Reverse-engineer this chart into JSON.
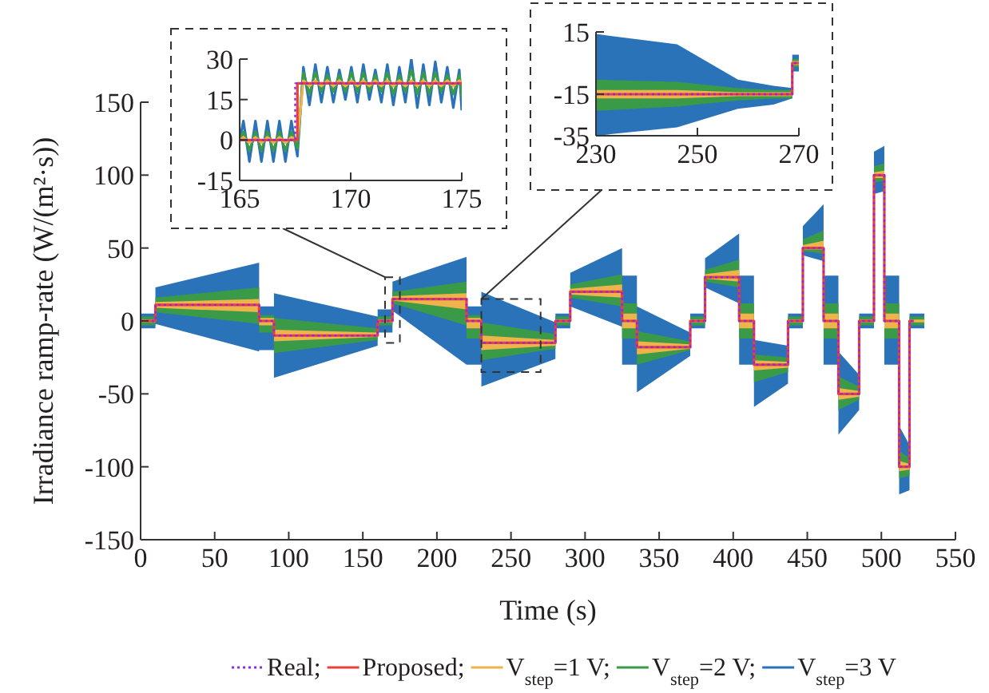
{
  "chart_data": [
    {
      "type": "line",
      "xlabel": "Time (s)",
      "ylabel": "Irradiance ramp-rate (W/(m²·s))",
      "xlim": [
        0,
        550
      ],
      "ylim": [
        -150,
        150
      ],
      "xticks": [
        0,
        50,
        100,
        150,
        200,
        250,
        300,
        350,
        400,
        450,
        500,
        550
      ],
      "yticks": [
        -150,
        -100,
        -50,
        0,
        50,
        100,
        150
      ],
      "legend": "bottom",
      "x": [
        0,
        10,
        10,
        80,
        80,
        90,
        90,
        160,
        160,
        170,
        170,
        220,
        220,
        230,
        230,
        280,
        280,
        290,
        290,
        325,
        325,
        335,
        335,
        371,
        371,
        381,
        381,
        404,
        404,
        414,
        414,
        437,
        437,
        447,
        447,
        461,
        461,
        471,
        471,
        485,
        485,
        495,
        495,
        502,
        502,
        512,
        512,
        519,
        519,
        529
      ],
      "series": [
        {
          "name": "V$_{step}$=3 V",
          "color": "#2a73b8",
          "values": [
            null,
            null,
            null,
            null,
            null,
            null,
            null,
            null,
            null,
            null,
            null,
            null,
            null,
            null,
            null,
            null,
            null,
            null,
            null,
            null,
            null,
            null,
            null,
            null,
            null,
            null,
            null,
            null,
            null,
            null,
            null,
            null,
            null,
            null,
            null,
            null,
            null,
            null,
            null,
            null,
            null,
            null,
            null,
            null,
            null,
            null,
            null,
            null,
            null,
            null
          ],
          "lower": [
            -5,
            -5,
            -2,
            -21,
            -20,
            -20,
            -39,
            -17,
            -8,
            -8,
            7,
            -30,
            -30,
            -30,
            -45,
            -26,
            -5,
            -5,
            10,
            -4,
            -30,
            -30,
            -49,
            -24,
            -5,
            -5,
            23,
            12,
            -30,
            -30,
            -59,
            -43,
            -5,
            -5,
            45,
            41,
            -30,
            -30,
            -78,
            -61,
            -5,
            -5,
            87,
            89,
            -30,
            -30,
            -119,
            -116,
            -5,
            -5
          ],
          "upper": [
            5,
            5,
            23,
            40,
            10,
            10,
            19,
            3,
            8,
            8,
            27,
            44,
            10,
            10,
            20,
            -1,
            5,
            5,
            33,
            50,
            31,
            31,
            10,
            -8,
            5,
            5,
            43,
            60,
            31,
            31,
            -13,
            -17,
            5,
            5,
            65,
            80,
            31,
            31,
            -21,
            -37,
            5,
            5,
            116,
            120,
            31,
            31,
            -72,
            -85,
            5,
            5
          ]
        },
        {
          "name": "V$_{step}$=2 V;",
          "color": "#3a9a47",
          "values": [
            null,
            null,
            null,
            null,
            null,
            null,
            null,
            null,
            null,
            null,
            null,
            null,
            null,
            null,
            null,
            null,
            null,
            null,
            null,
            null,
            null,
            null,
            null,
            null,
            null,
            null,
            null,
            null,
            null,
            null,
            null,
            null,
            null,
            null,
            null,
            null,
            null,
            null,
            null,
            null,
            null,
            null,
            null,
            null,
            null,
            null,
            null,
            null,
            null,
            null
          ],
          "lower": [
            -3,
            -3,
            6,
            -2,
            -8,
            -8,
            -22,
            -13,
            -3,
            -3,
            12,
            -3,
            -12,
            -12,
            -27,
            -19,
            -3,
            -3,
            16,
            10,
            -12,
            -12,
            -30,
            -20,
            -3,
            -3,
            27,
            23,
            -12,
            -12,
            -42,
            -35,
            -3,
            -3,
            48,
            46,
            -12,
            -12,
            -61,
            -54,
            -3,
            -3,
            95,
            96,
            -12,
            -12,
            -108,
            -106,
            -3,
            -3
          ],
          "upper": [
            3,
            3,
            16,
            23,
            4,
            4,
            2,
            -5,
            3,
            3,
            20,
            27,
            4,
            4,
            -1,
            -9,
            3,
            3,
            25,
            32,
            12,
            12,
            -7,
            -14,
            3,
            3,
            35,
            42,
            12,
            12,
            -23,
            -25,
            3,
            3,
            56,
            62,
            12,
            12,
            -38,
            -45,
            3,
            3,
            106,
            108,
            12,
            12,
            -89,
            -94,
            3,
            3
          ]
        },
        {
          "name": "V$_{step}$=1 V;",
          "color": "#efb34c",
          "values": [
            null,
            null,
            null,
            null,
            null,
            null,
            null,
            null,
            null,
            null,
            null,
            null,
            null,
            null,
            null,
            null,
            null,
            null,
            null,
            null,
            null,
            null,
            null,
            null,
            null,
            null,
            null,
            null,
            null,
            null,
            null,
            null,
            null,
            null,
            null,
            null,
            null,
            null,
            null,
            null,
            null,
            null,
            null,
            null,
            null,
            null,
            null,
            null,
            null,
            null
          ],
          "lower": [
            -1,
            -1,
            9,
            6,
            -3,
            -3,
            -14,
            -11,
            -1,
            -1,
            14,
            8,
            -5,
            -5,
            -20,
            -17,
            -1,
            -1,
            18,
            16,
            -5,
            -5,
            -23,
            -19,
            -1,
            -1,
            29,
            27,
            -5,
            -5,
            -34,
            -32,
            -1,
            -1,
            49,
            49,
            -5,
            -5,
            -54,
            -52,
            -1,
            -1,
            98,
            98,
            -5,
            -5,
            -103,
            -102,
            -1,
            -1
          ],
          "upper": [
            1,
            1,
            13,
            15,
            2,
            2,
            -6,
            -8,
            1,
            1,
            17,
            19,
            2,
            2,
            -10,
            -13,
            1,
            1,
            22,
            25,
            5,
            5,
            -14,
            -16,
            1,
            1,
            32,
            35,
            5,
            5,
            -27,
            -28,
            1,
            1,
            52,
            55,
            5,
            5,
            -46,
            -48,
            1,
            1,
            102,
            103,
            5,
            5,
            -96,
            -98,
            1,
            1
          ]
        },
        {
          "name": "Proposed;",
          "type": "step",
          "color": "#e8403a",
          "x": [
            0,
            10,
            80,
            90,
            160,
            170,
            220,
            230,
            280,
            290,
            325,
            335,
            371,
            381,
            404,
            414,
            437,
            447,
            461,
            471,
            485,
            495,
            502,
            512,
            519,
            522
          ],
          "values": [
            0,
            11,
            0,
            -10,
            0,
            15,
            0,
            -15,
            0,
            20,
            0,
            -18,
            0,
            30,
            0,
            -30,
            0,
            50,
            0,
            -50,
            0,
            100,
            0,
            -100,
            0,
            0
          ]
        },
        {
          "name": "Real;",
          "type": "step",
          "color": "#8a2be2",
          "line_style": "dotted",
          "x": [
            0,
            10,
            80,
            90,
            160,
            170,
            220,
            230,
            280,
            290,
            325,
            335,
            371,
            381,
            404,
            414,
            437,
            447,
            461,
            471,
            485,
            495,
            502,
            512,
            519,
            522
          ],
          "values": [
            0,
            11,
            0,
            -10,
            0,
            15,
            0,
            -15,
            0,
            20,
            0,
            -18,
            0,
            30,
            0,
            -30,
            0,
            50,
            0,
            -50,
            0,
            100,
            0,
            -100,
            0,
            0
          ]
        }
      ]
    },
    {
      "type": "line",
      "xlim": [
        165,
        175
      ],
      "ylim": [
        -15,
        30
      ],
      "xticks": [
        165,
        170,
        175
      ],
      "yticks": [
        -15,
        0,
        15,
        30
      ],
      "x": [
        165,
        165.17,
        165.44,
        165.71,
        165.98,
        166.25,
        166.52,
        166.79,
        167.06,
        167.33,
        167.6,
        167.87,
        168.14,
        168.41,
        168.68,
        168.95,
        169.22,
        169.49,
        169.76,
        170.03,
        170.3,
        170.57,
        170.84,
        171.11,
        171.38,
        171.65,
        171.92,
        172.19,
        172.46,
        172.73,
        173,
        173.27,
        173.54,
        173.81,
        174.08,
        174.35,
        174.62,
        174.89,
        175
      ],
      "series": [
        {
          "color": "#2a73b8",
          "values": [
            0,
            7,
            -8,
            7,
            -8,
            7,
            -8,
            7,
            -8,
            7,
            -6,
            27,
            13,
            28,
            14,
            27,
            14,
            26,
            15,
            27,
            14,
            28,
            15,
            26,
            14,
            28,
            13,
            27,
            14,
            30,
            12,
            28,
            13,
            29,
            14,
            27,
            12,
            26,
            11
          ]
        },
        {
          "color": "#3a9a47",
          "values": [
            0,
            3,
            -4,
            3,
            -4,
            3,
            -4,
            3,
            -4,
            3,
            -3,
            25,
            17,
            25,
            18,
            24,
            18,
            24,
            18,
            25,
            18,
            25,
            18,
            24,
            18,
            25,
            17,
            24,
            18,
            26,
            17,
            25,
            17,
            25,
            18,
            24,
            17,
            24,
            16
          ]
        },
        {
          "color": "#efb34c",
          "values": [
            0,
            1,
            -1,
            1,
            -1,
            1,
            -1,
            1,
            -1,
            1,
            0,
            22,
            20,
            22,
            20,
            22,
            20,
            22,
            20,
            22,
            20,
            22,
            20,
            22,
            20,
            22,
            20,
            22,
            20,
            22,
            20,
            22,
            20,
            22,
            20,
            22,
            20,
            22,
            21
          ]
        },
        {
          "type": "step",
          "color": "#e8403a",
          "x": [
            165,
            167.6,
            175
          ],
          "values": [
            0,
            21,
            21
          ]
        },
        {
          "type": "step",
          "color": "#8a2be2",
          "line_style": "dotted",
          "x": [
            165,
            167.5,
            175
          ],
          "values": [
            0,
            21,
            21
          ]
        }
      ]
    },
    {
      "type": "line",
      "xlim": [
        230,
        270
      ],
      "ylim": [
        -35,
        15
      ],
      "xticks": [
        230,
        250,
        270
      ],
      "yticks": [
        -35,
        -15,
        15
      ],
      "x": [
        230,
        246,
        258,
        265,
        268.7,
        268.7,
        270
      ],
      "series": [
        {
          "color": "#2a73b8",
          "values": [
            null,
            null,
            null,
            null,
            null,
            null,
            null
          ],
          "lower": [
            -35,
            -31,
            -22,
            -20,
            -17,
            -4,
            -4
          ],
          "upper": [
            14,
            9,
            -8,
            -11,
            -12,
            4,
            4
          ]
        },
        {
          "color": "#3a9a47",
          "values": [
            null,
            null,
            null,
            null,
            null,
            null,
            null
          ],
          "lower": [
            -23,
            -21,
            -18,
            -17,
            -17,
            -2,
            -2
          ],
          "upper": [
            -8,
            -9,
            -12,
            -13,
            -13,
            2,
            2
          ]
        },
        {
          "color": "#efb34c",
          "values": [
            null,
            null,
            null,
            null,
            null,
            null,
            null
          ],
          "lower": [
            -17,
            -17,
            -16,
            -16,
            -16,
            -1,
            -1
          ],
          "upper": [
            -13,
            -13,
            -14,
            -14,
            -14,
            1,
            1
          ]
        },
        {
          "type": "step",
          "color": "#e8403a",
          "x": [
            230,
            268.7,
            270
          ],
          "values": [
            -15,
            0,
            0
          ]
        },
        {
          "type": "step",
          "color": "#8a2be2",
          "line_style": "dotted",
          "x": [
            230,
            268.7,
            270
          ],
          "values": [
            -15,
            0,
            0
          ]
        }
      ]
    }
  ]
}
